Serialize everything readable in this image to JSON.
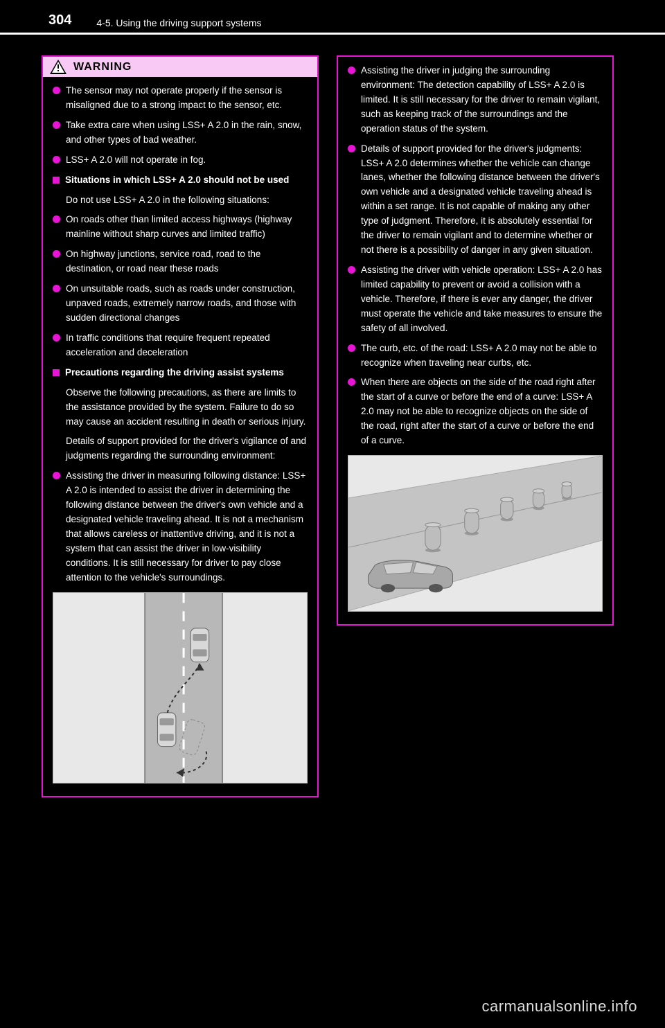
{
  "header": {
    "page_number": "304",
    "chapter": "4-5. Using the driving support systems"
  },
  "footer": "carmanualsonline.info",
  "warning_label": "WARNING",
  "col1": {
    "items": [
      {
        "type": "dot",
        "text": "The sensor may not operate properly if the sensor is misaligned due to a strong impact to the sensor, etc."
      },
      {
        "type": "dot",
        "text": "Take extra care when using LSS+ A 2.0 in the rain, snow, and other types of bad weather."
      },
      {
        "type": "dot",
        "text": "LSS+ A 2.0 will not operate in fog."
      },
      {
        "type": "sq",
        "bold": true,
        "text": "Situations in which LSS+ A 2.0 should not be used"
      },
      {
        "type": "plain",
        "text": "Do not use LSS+ A 2.0 in the following situations:"
      },
      {
        "type": "dot",
        "text": "On roads other than limited access highways (highway mainline without sharp curves and limited traffic)"
      },
      {
        "type": "dot",
        "text": "On highway junctions, service road, road to the destination, or road near these roads"
      },
      {
        "type": "dot",
        "text": "On unsuitable roads, such as roads under construction, unpaved roads, extremely narrow roads, and those with sudden directional changes"
      },
      {
        "type": "dot",
        "text": "In traffic conditions that require frequent repeated acceleration and deceleration"
      },
      {
        "type": "sq",
        "bold": true,
        "text": "Precautions regarding the driving assist systems"
      },
      {
        "type": "plain",
        "text": "Observe the following precautions, as there are limits to the assistance provided by the system. Failure to do so may cause an accident resulting in death or serious injury."
      },
      {
        "type": "plain",
        "text": "Details of support provided for the driver's vigilance of and judgments regarding the surrounding environment:"
      },
      {
        "type": "dot",
        "text": "Assisting the driver in measuring following distance: LSS+ A 2.0 is intended to assist the driver in determining the following distance between the driver's own vehicle and a designated vehicle traveling ahead. It is not a mechanism that allows careless or inattentive driving, and it is not a system that can assist the driver in low-visibility conditions. It is still necessary for driver to pay close attention to the vehicle's surroundings."
      }
    ],
    "illustration": {
      "bg": "#e8e8e8",
      "road": "#b8b8b8",
      "lane": "#ffffff",
      "car": "#d8d8d8"
    }
  },
  "col2": {
    "items": [
      {
        "type": "dot",
        "text": "Assisting the driver in judging the surrounding environment: The detection capability of LSS+ A 2.0 is limited. It is still necessary for the driver to remain vigilant, such as keeping track of the surroundings and the operation status of the system."
      },
      {
        "type": "dot",
        "text": "Details of support provided for the driver's judgments: LSS+ A 2.0 determines whether the vehicle can change lanes, whether the following distance between the driver's own vehicle and a designated vehicle traveling ahead is within a set range. It is not capable of making any other type of judgment. Therefore, it is absolutely essential for the driver to remain vigilant and to determine whether or not there is a possibility of danger in any given situation."
      },
      {
        "type": "dot",
        "text": "Assisting the driver with vehicle operation: LSS+ A 2.0 has limited capability to prevent or avoid a collision with a vehicle. Therefore, if there is ever any danger, the driver must operate the vehicle and take measures to ensure the safety of all involved."
      },
      {
        "type": "dot",
        "text": "The curb, etc. of the road: LSS+ A 2.0 may not be able to recognize when traveling near curbs, etc."
      },
      {
        "type": "dot",
        "text": "When there are objects on the side of the road right after the start of a curve or before the end of a curve: LSS+ A 2.0 may not be able to recognize objects on the side of the road, right after the start of a curve or before the end of a curve."
      }
    ],
    "illustration": {
      "bg": "#e8e8e8",
      "road": "#c4c4c4",
      "car_body": "#a8a8a8",
      "post": "#bdbdbd"
    }
  }
}
